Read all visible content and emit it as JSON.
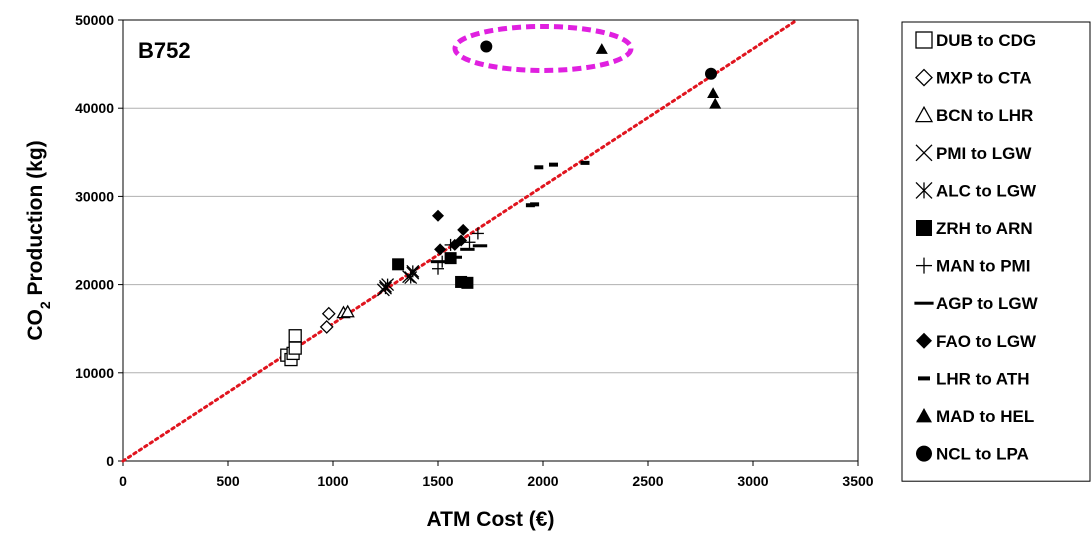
{
  "chart_data": {
    "type": "scatter",
    "title": "",
    "panel_label": "B752",
    "xlabel": "ATM Cost (€)",
    "ylabel_main": "CO",
    "ylabel_sub": "2",
    "ylabel_rest": " Production (kg)",
    "xlim": [
      0,
      3500
    ],
    "ylim": [
      0,
      50000
    ],
    "xticks": [
      0,
      500,
      1000,
      1500,
      2000,
      2500,
      3000,
      3500
    ],
    "yticks": [
      0,
      10000,
      20000,
      30000,
      40000,
      50000
    ],
    "xtick_labels": [
      "0",
      "500",
      "1000",
      "1500",
      "2000",
      "2500",
      "3000",
      "3500"
    ],
    "ytick_labels": [
      "0",
      "10000",
      "20000",
      "30000",
      "40000",
      "50000"
    ],
    "grid": "horizontal",
    "legend_position": "right",
    "trendline": {
      "style": "dotted",
      "color": "#e0141e",
      "from": [
        0,
        0
      ],
      "to": [
        3210,
        50000
      ]
    },
    "highlight_ellipse": {
      "color": "#e020e0",
      "center": [
        2000,
        47000
      ]
    },
    "series": [
      {
        "name": "DUB to CDG",
        "marker": "square-open",
        "points": [
          [
            780,
            12000
          ],
          [
            800,
            11500
          ],
          [
            810,
            12200
          ],
          [
            820,
            12800
          ],
          [
            820,
            14200
          ]
        ]
      },
      {
        "name": "MXP to CTA",
        "marker": "diamond-open",
        "points": [
          [
            970,
            15200
          ],
          [
            980,
            16700
          ]
        ]
      },
      {
        "name": "BCN to LHR",
        "marker": "triangle-open",
        "points": [
          [
            1050,
            16800
          ],
          [
            1070,
            16900
          ]
        ]
      },
      {
        "name": "PMI to LGW",
        "marker": "x",
        "points": [
          [
            1240,
            19400
          ],
          [
            1250,
            19800
          ],
          [
            1360,
            20900
          ],
          [
            1380,
            21300
          ]
        ]
      },
      {
        "name": "ALC to LGW",
        "marker": "asterisk",
        "points": [
          [
            1250,
            19600
          ],
          [
            1260,
            20000
          ],
          [
            1370,
            20800
          ],
          [
            1380,
            21500
          ]
        ]
      },
      {
        "name": "ZRH to ARN",
        "marker": "square-filled",
        "points": [
          [
            1310,
            22300
          ],
          [
            1560,
            23000
          ],
          [
            1610,
            20300
          ],
          [
            1640,
            20200
          ]
        ]
      },
      {
        "name": "MAN to PMI",
        "marker": "plus",
        "points": [
          [
            1500,
            21800
          ],
          [
            1520,
            22600
          ],
          [
            1560,
            24500
          ],
          [
            1650,
            24800
          ],
          [
            1690,
            25800
          ]
        ]
      },
      {
        "name": "AGP to LGW",
        "marker": "dash",
        "points": [
          [
            1500,
            22600
          ],
          [
            1580,
            23100
          ],
          [
            1640,
            24000
          ],
          [
            1700,
            24400
          ]
        ]
      },
      {
        "name": "FAO to LGW",
        "marker": "diamond-filled",
        "points": [
          [
            1500,
            27800
          ],
          [
            1510,
            24000
          ],
          [
            1580,
            24500
          ],
          [
            1610,
            25000
          ],
          [
            1620,
            26200
          ]
        ]
      },
      {
        "name": "LHR to ATH",
        "marker": "short-dash",
        "points": [
          [
            1940,
            29000
          ],
          [
            1960,
            29100
          ],
          [
            1980,
            33300
          ],
          [
            2050,
            33600
          ],
          [
            2200,
            33800
          ]
        ]
      },
      {
        "name": "MAD to HEL",
        "marker": "triangle-filled",
        "points": [
          [
            2280,
            46700
          ],
          [
            2810,
            41700
          ],
          [
            2820,
            40500
          ]
        ]
      },
      {
        "name": "NCL to LPA",
        "marker": "circle-filled",
        "points": [
          [
            1730,
            47000
          ],
          [
            2800,
            43900
          ]
        ]
      }
    ]
  }
}
